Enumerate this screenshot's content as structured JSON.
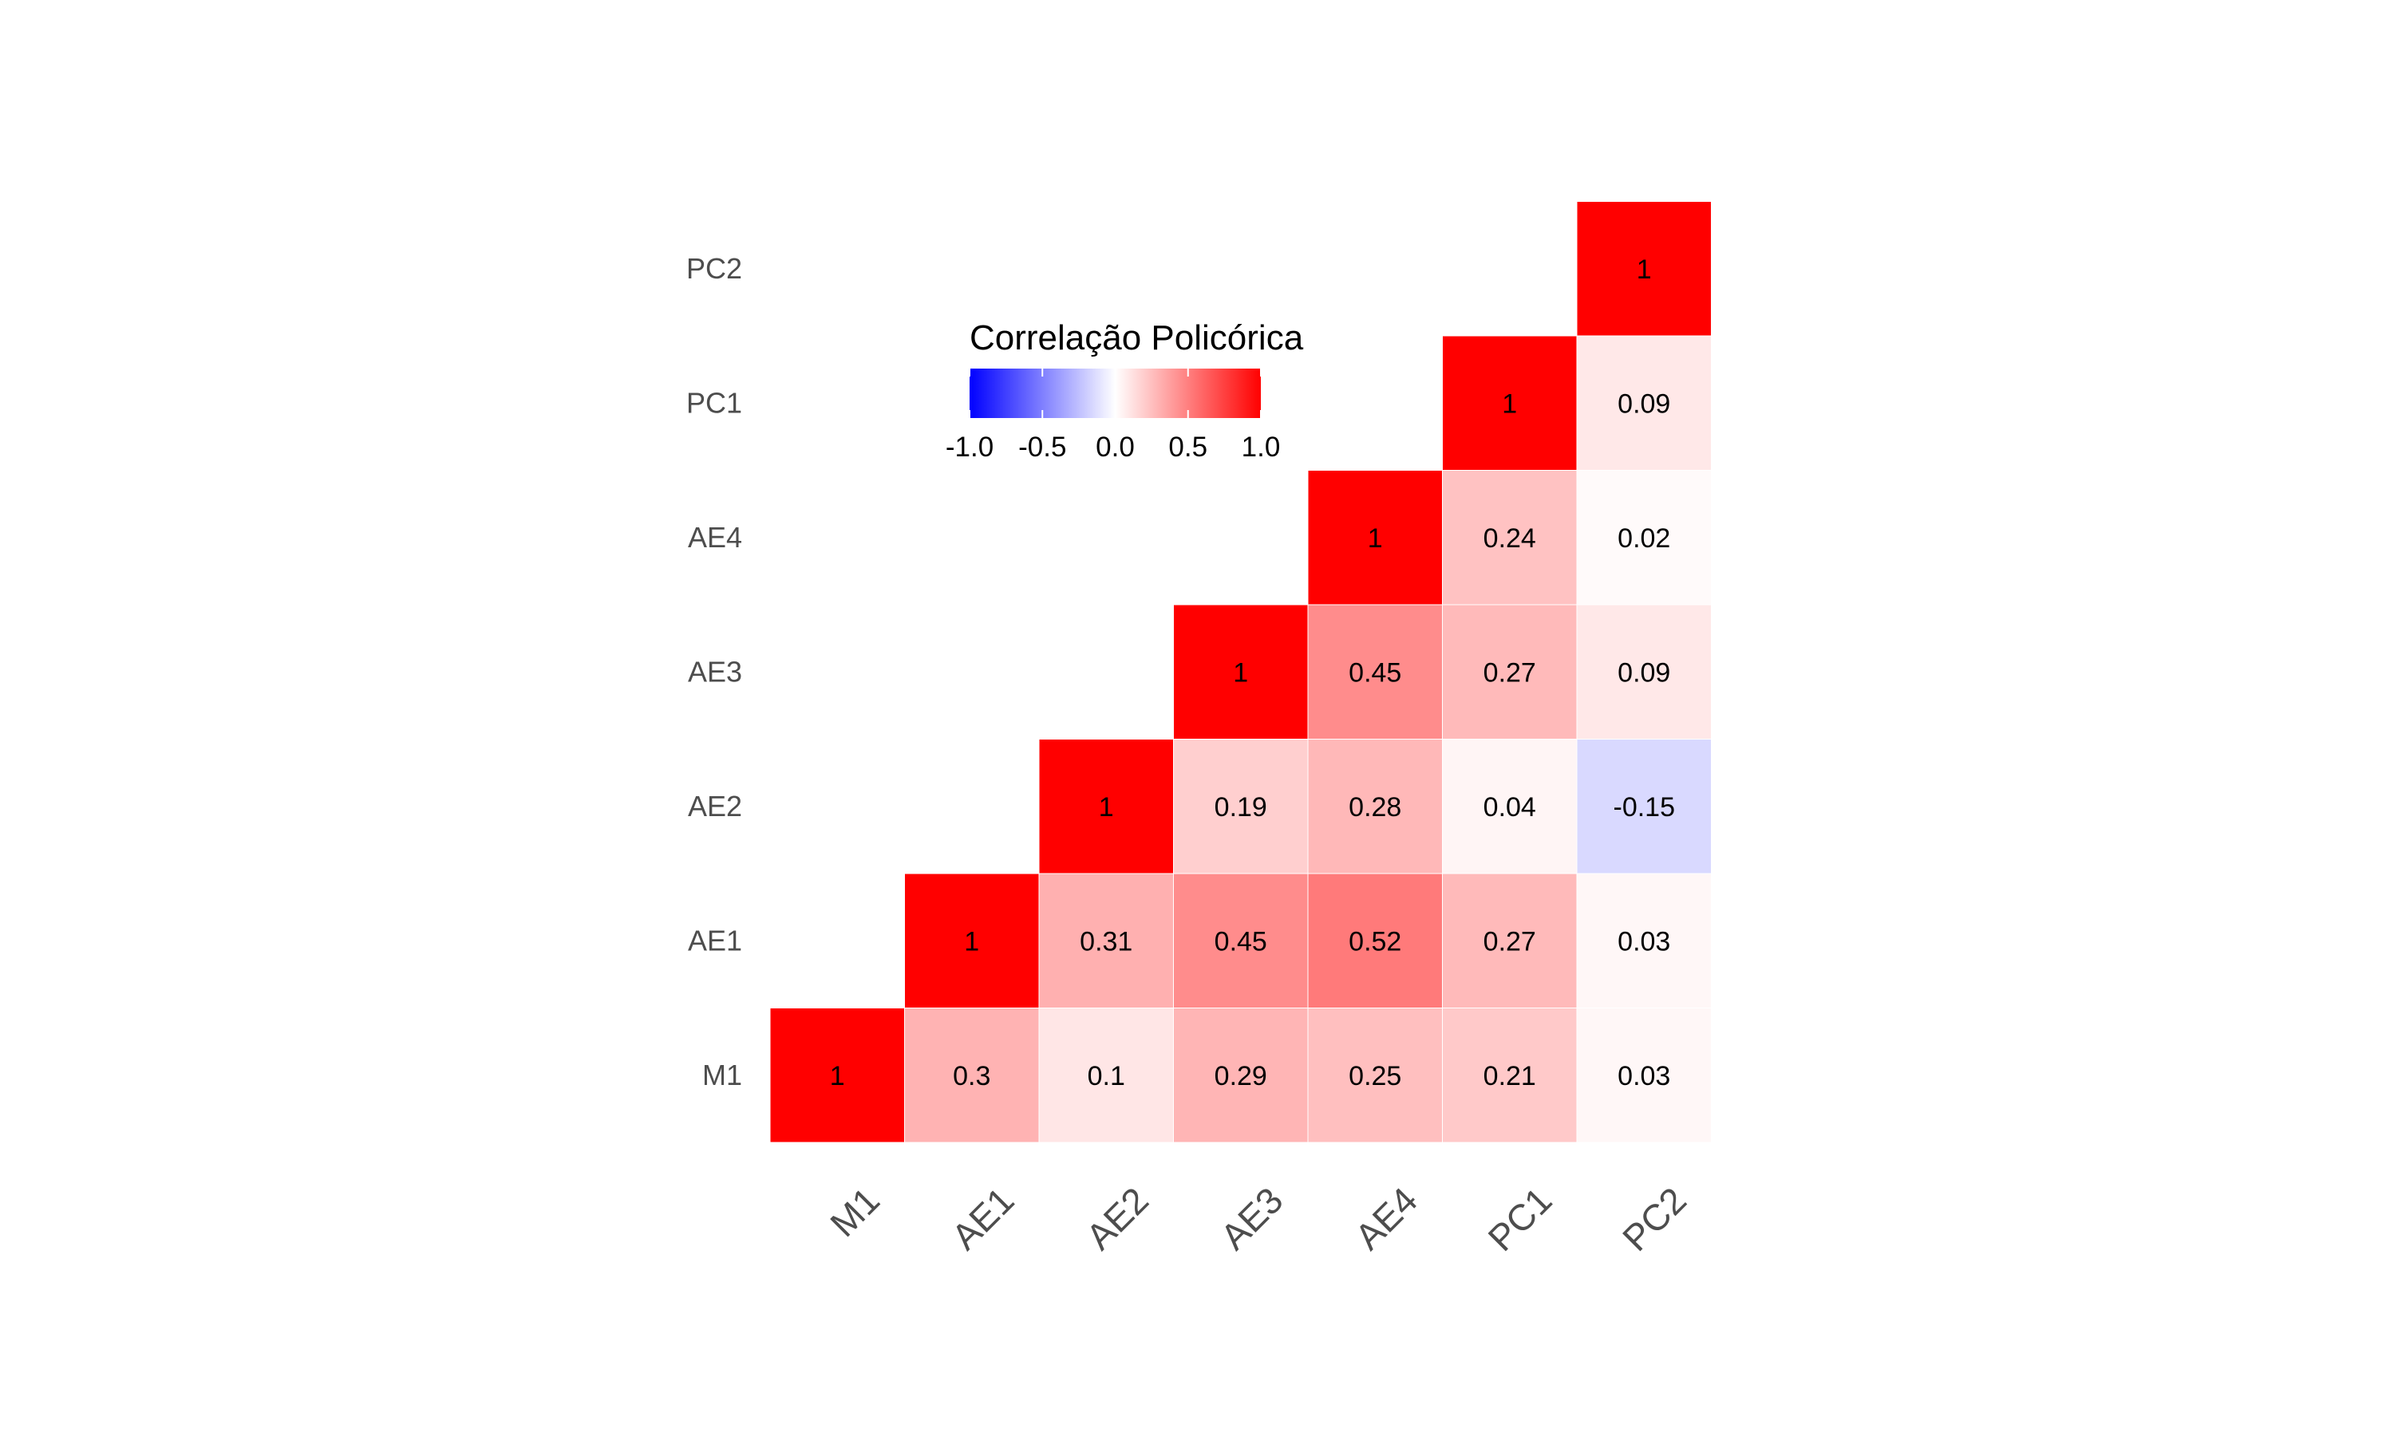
{
  "chart_data": {
    "type": "heatmap",
    "variables": [
      "M1",
      "AE1",
      "AE2",
      "AE3",
      "AE4",
      "PC1",
      "PC2"
    ],
    "lower_triangle": true,
    "cells": [
      {
        "x": "M1",
        "y": "M1",
        "value": 1,
        "label": "1"
      },
      {
        "x": "AE1",
        "y": "M1",
        "value": 0.3,
        "label": "0.3"
      },
      {
        "x": "AE2",
        "y": "M1",
        "value": 0.1,
        "label": "0.1"
      },
      {
        "x": "AE3",
        "y": "M1",
        "value": 0.29,
        "label": "0.29"
      },
      {
        "x": "AE4",
        "y": "M1",
        "value": 0.25,
        "label": "0.25"
      },
      {
        "x": "PC1",
        "y": "M1",
        "value": 0.21,
        "label": "0.21"
      },
      {
        "x": "PC2",
        "y": "M1",
        "value": 0.03,
        "label": "0.03"
      },
      {
        "x": "AE1",
        "y": "AE1",
        "value": 1,
        "label": "1"
      },
      {
        "x": "AE2",
        "y": "AE1",
        "value": 0.31,
        "label": "0.31"
      },
      {
        "x": "AE3",
        "y": "AE1",
        "value": 0.45,
        "label": "0.45"
      },
      {
        "x": "AE4",
        "y": "AE1",
        "value": 0.52,
        "label": "0.52"
      },
      {
        "x": "PC1",
        "y": "AE1",
        "value": 0.27,
        "label": "0.27"
      },
      {
        "x": "PC2",
        "y": "AE1",
        "value": 0.03,
        "label": "0.03"
      },
      {
        "x": "AE2",
        "y": "AE2",
        "value": 1,
        "label": "1"
      },
      {
        "x": "AE3",
        "y": "AE2",
        "value": 0.19,
        "label": "0.19"
      },
      {
        "x": "AE4",
        "y": "AE2",
        "value": 0.28,
        "label": "0.28"
      },
      {
        "x": "PC1",
        "y": "AE2",
        "value": 0.04,
        "label": "0.04"
      },
      {
        "x": "PC2",
        "y": "AE2",
        "value": -0.15,
        "label": "-0.15"
      },
      {
        "x": "AE3",
        "y": "AE3",
        "value": 1,
        "label": "1"
      },
      {
        "x": "AE4",
        "y": "AE3",
        "value": 0.45,
        "label": "0.45"
      },
      {
        "x": "PC1",
        "y": "AE3",
        "value": 0.27,
        "label": "0.27"
      },
      {
        "x": "PC2",
        "y": "AE3",
        "value": 0.09,
        "label": "0.09"
      },
      {
        "x": "AE4",
        "y": "AE4",
        "value": 1,
        "label": "1"
      },
      {
        "x": "PC1",
        "y": "AE4",
        "value": 0.24,
        "label": "0.24"
      },
      {
        "x": "PC2",
        "y": "AE4",
        "value": 0.02,
        "label": "0.02"
      },
      {
        "x": "PC1",
        "y": "PC1",
        "value": 1,
        "label": "1"
      },
      {
        "x": "PC2",
        "y": "PC1",
        "value": 0.09,
        "label": "0.09"
      },
      {
        "x": "PC2",
        "y": "PC2",
        "value": 1,
        "label": "1"
      }
    ],
    "legend": {
      "title": "Correlação Policórica",
      "placement": "top-left-inside",
      "range": [
        -1,
        1
      ],
      "breaks": [
        -1.0,
        -0.5,
        0.0,
        0.5,
        1.0
      ],
      "break_labels": [
        "-1.0",
        "-0.5",
        "0.0",
        "0.5",
        "1.0"
      ]
    },
    "color_scale": {
      "low": "#0000ff",
      "mid": "#ffffff",
      "high": "#ff0000"
    },
    "xlabel": "",
    "ylabel": "",
    "grid": false
  }
}
